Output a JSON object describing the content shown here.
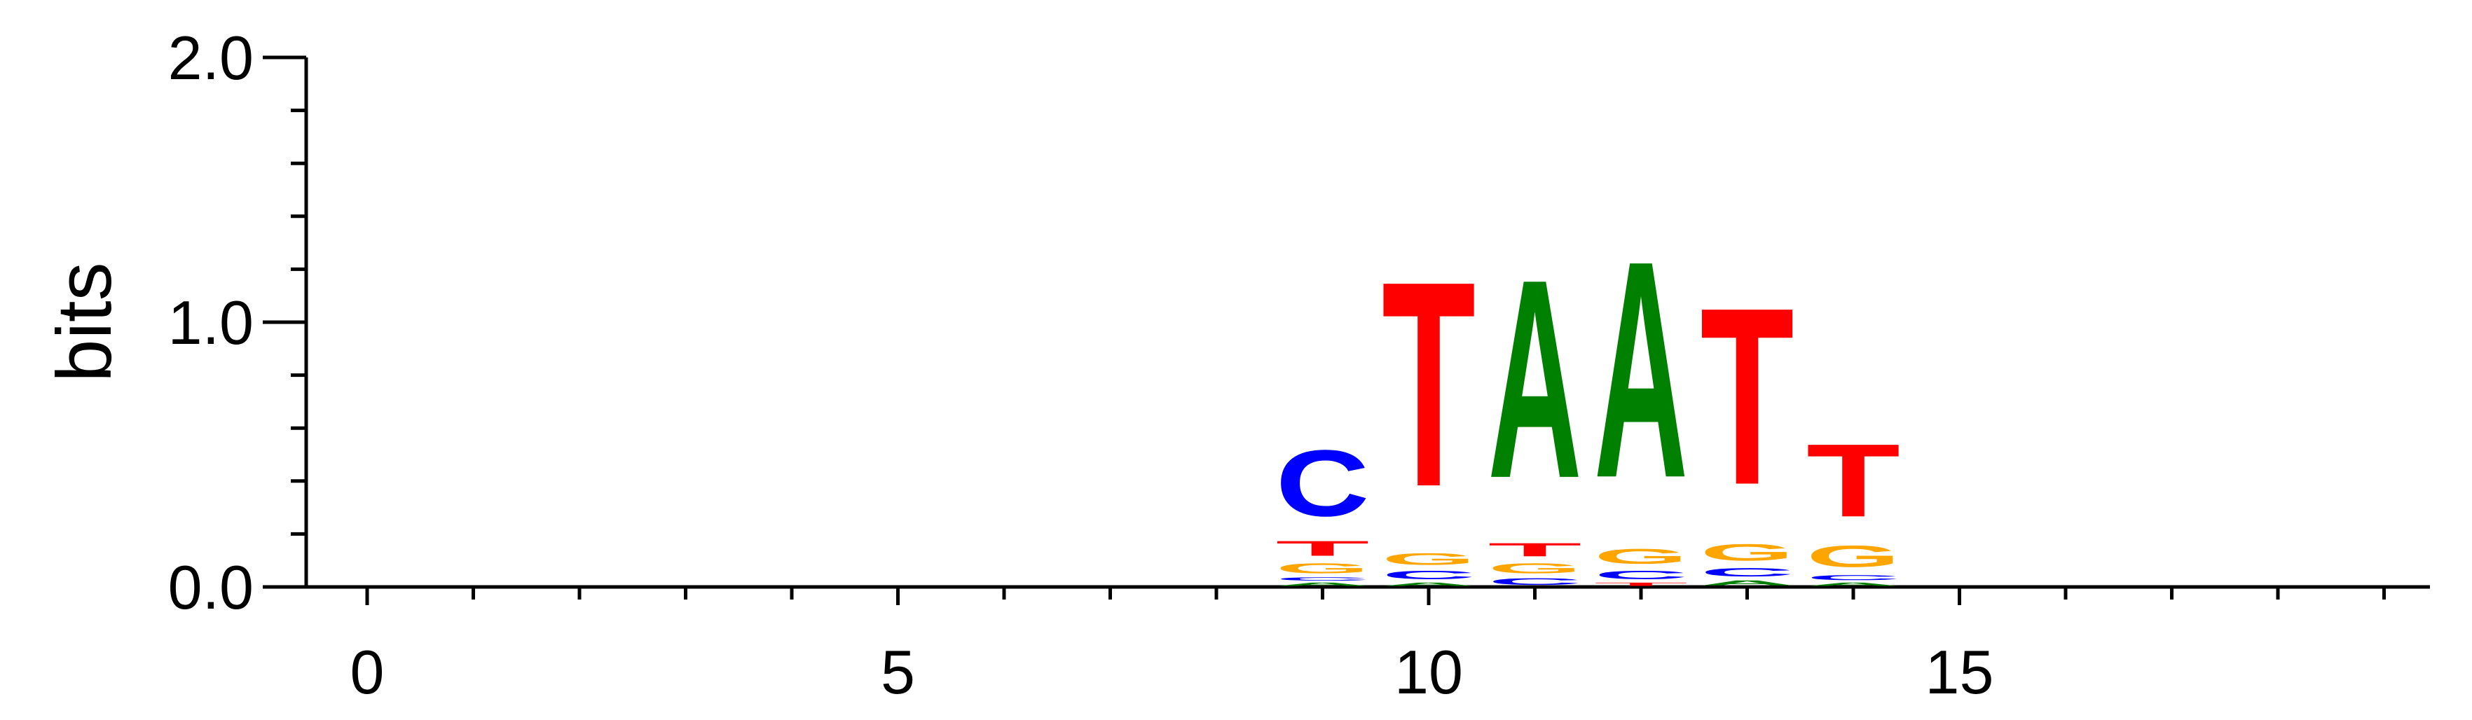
{
  "chart_data": {
    "type": "sequence-logo",
    "ylabel": "bits",
    "ylim": [
      0,
      2
    ],
    "xlim": [
      -0.5,
      19
    ],
    "y_ticks": [
      "0.0",
      "1.0",
      "2.0"
    ],
    "y_tick_values": [
      0,
      1,
      2
    ],
    "y_minor_step": 0.2,
    "x_ticks": [
      "0",
      "5",
      "10",
      "15"
    ],
    "x_tick_values": [
      0,
      5,
      10,
      15
    ],
    "x_minor_step": 1,
    "grid": false,
    "colors": {
      "A": "#008000",
      "C": "#0000ff",
      "G": "#ffa500",
      "T": "#ff0000"
    },
    "positions": [
      {
        "x": 9,
        "stack": [
          {
            "base": "A",
            "bits": 0.02
          },
          {
            "base": "C",
            "bits": 0.02
          },
          {
            "base": "G",
            "bits": 0.06
          },
          {
            "base": "T",
            "bits": 0.09
          },
          {
            "base": "C",
            "bits": 0.4
          }
        ]
      },
      {
        "x": 10,
        "stack": [
          {
            "base": "A",
            "bits": 0.02
          },
          {
            "base": "C",
            "bits": 0.05
          },
          {
            "base": "G",
            "bits": 0.07
          },
          {
            "base": "T",
            "bits": 1.24
          }
        ]
      },
      {
        "x": 11,
        "stack": [
          {
            "base": "C",
            "bits": 0.04
          },
          {
            "base": "G",
            "bits": 0.06
          },
          {
            "base": "T",
            "bits": 0.08
          },
          {
            "base": "A",
            "bits": 1.2
          }
        ]
      },
      {
        "x": 12,
        "stack": [
          {
            "base": "T",
            "bits": 0.02
          },
          {
            "base": "C",
            "bits": 0.05
          },
          {
            "base": "G",
            "bits": 0.09
          },
          {
            "base": "A",
            "bits": 1.31
          }
        ]
      },
      {
        "x": 13,
        "stack": [
          {
            "base": "A",
            "bits": 0.03
          },
          {
            "base": "C",
            "bits": 0.05
          },
          {
            "base": "G",
            "bits": 0.1
          },
          {
            "base": "T",
            "bits": 1.07
          }
        ]
      },
      {
        "x": 14,
        "stack": [
          {
            "base": "A",
            "bits": 0.02
          },
          {
            "base": "C",
            "bits": 0.03
          },
          {
            "base": "G",
            "bits": 0.13
          },
          {
            "base": "T",
            "bits": 0.44
          }
        ]
      }
    ]
  }
}
